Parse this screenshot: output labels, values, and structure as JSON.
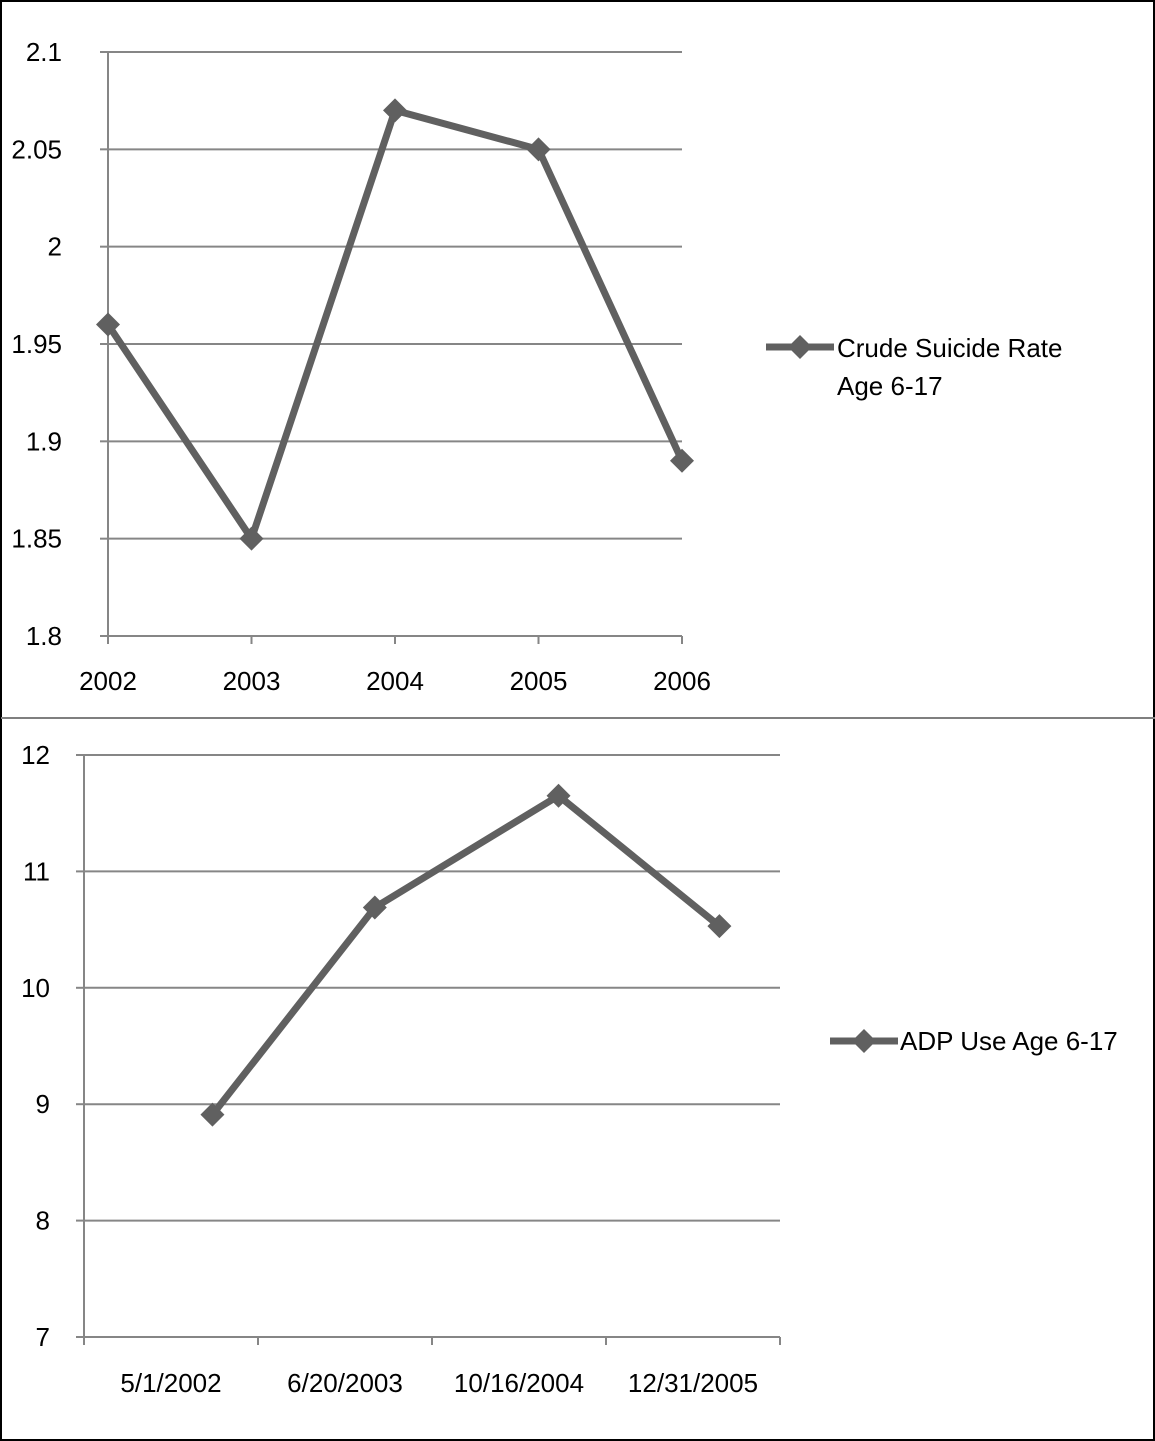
{
  "colors": {
    "series": "#606060",
    "grid": "#868686",
    "axis": "#868686",
    "border": "#000000",
    "text": "#000000"
  },
  "chart_data": [
    {
      "type": "line",
      "x": [
        "2002",
        "2003",
        "2004",
        "2005",
        "2006"
      ],
      "series": [
        {
          "name": "Crude Suicide Rate Age 6-17",
          "values": [
            1.96,
            1.85,
            2.07,
            2.05,
            1.89
          ]
        }
      ],
      "legend_lines": [
        "Crude Suicide Rate",
        "Age 6-17"
      ],
      "ylim": [
        1.8,
        2.1
      ],
      "yticks": [
        "1.8",
        "1.85",
        "1.9",
        "1.95",
        "2",
        "2.05",
        "2.1"
      ],
      "grid": true,
      "legend": "right",
      "marker": "diamond"
    },
    {
      "type": "line",
      "x": [
        "2002-04-03",
        "2003-06-03",
        "2004-09-27",
        "2005-11-23"
      ],
      "series": [
        {
          "name": "ADP Use Age 6-17",
          "values": [
            8.91,
            10.69,
            11.65,
            10.53
          ]
        }
      ],
      "legend_lines": [
        "ADP Use Age 6-17"
      ],
      "ylim": [
        7,
        12
      ],
      "yticks": [
        "7",
        "8",
        "9",
        "10",
        "11",
        "12"
      ],
      "xlim": [
        "2001-05-01",
        "2006-05-01"
      ],
      "xticks": [
        "5/1/2002",
        "6/20/2003",
        "10/16/2004",
        "12/31/2005"
      ],
      "xtick_dates": [
        "2002-05-01",
        "2003-06-20",
        "2004-10-16",
        "2005-12-31"
      ],
      "grid": true,
      "legend": "right",
      "marker": "diamond"
    }
  ]
}
